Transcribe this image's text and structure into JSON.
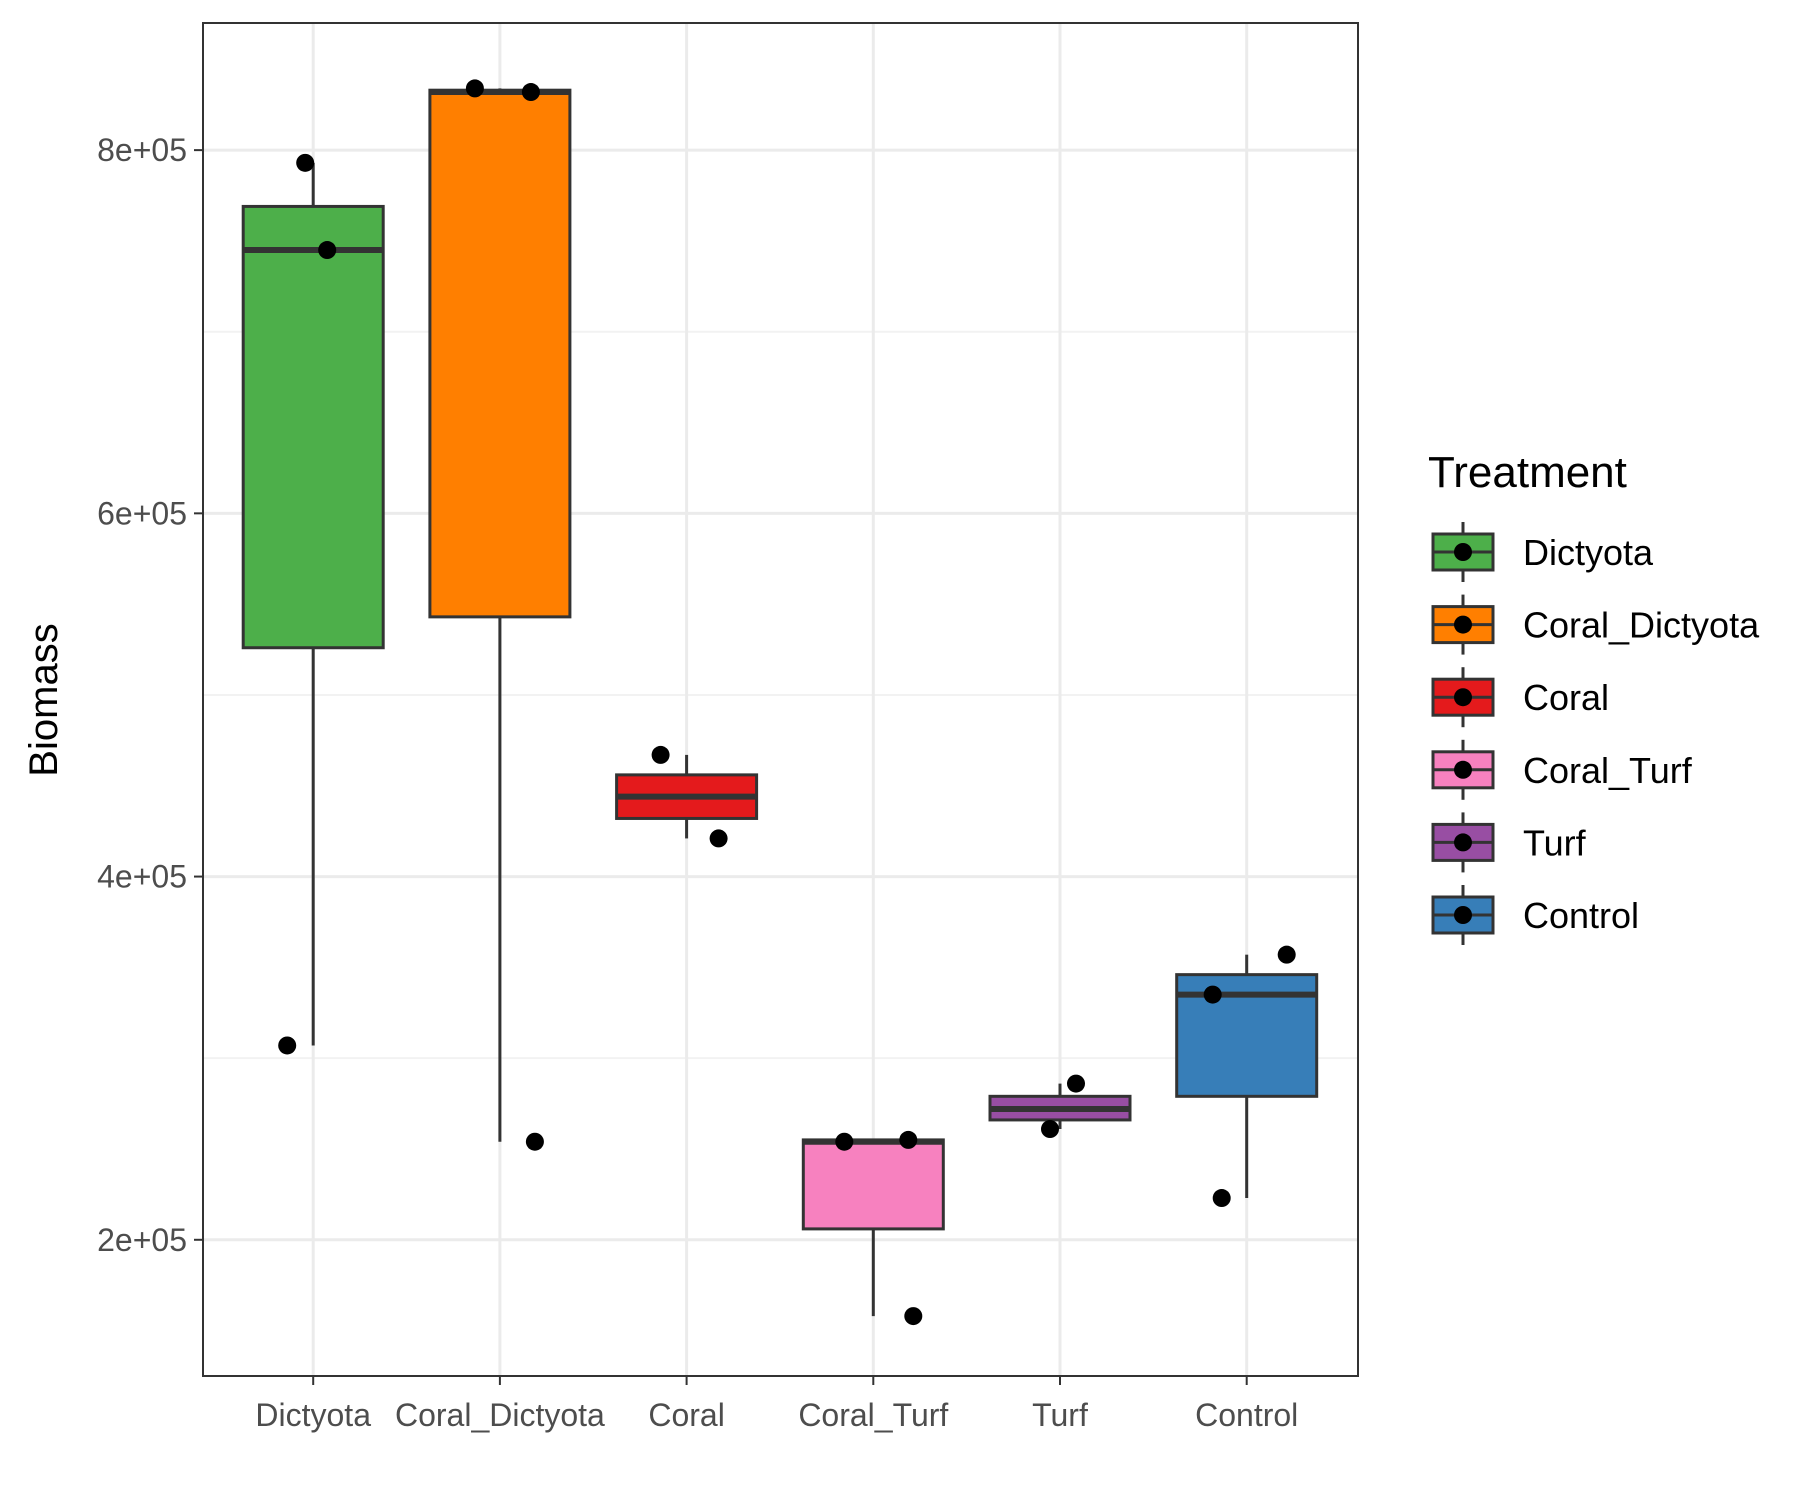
{
  "chart_data": {
    "type": "box",
    "title": "",
    "xlabel": "",
    "ylabel": "Biomass",
    "ylim": [
      125000,
      870000
    ],
    "y_ticks": [
      200000,
      400000,
      600000,
      800000
    ],
    "y_tick_labels": [
      "2e+05",
      "4e+05",
      "6e+05",
      "8e+05"
    ],
    "grid": true,
    "legend": {
      "title": "Treatment",
      "position": "right"
    },
    "categories": [
      "Dictyota",
      "Coral_Dictyota",
      "Coral",
      "Coral_Turf",
      "Turf",
      "Control"
    ],
    "series": [
      {
        "name": "Dictyota",
        "color": "#4DAF4A",
        "min": 307000,
        "q1": 526000,
        "median": 745000,
        "q3": 769000,
        "max": 793000,
        "points": [
          793000,
          745000,
          307000
        ]
      },
      {
        "name": "Coral_Dictyota",
        "color": "#FF7F00",
        "min": 254000,
        "q1": 543000,
        "median": 832000,
        "q3": 833000,
        "max": 834000,
        "points": [
          834000,
          832000,
          254000
        ]
      },
      {
        "name": "Coral",
        "color": "#E41A1C",
        "min": 421000,
        "q1": 432000,
        "median": 444000,
        "q3": 456000,
        "max": 467000,
        "points": [
          467000,
          421000
        ]
      },
      {
        "name": "Coral_Turf",
        "color": "#F781BF",
        "min": 158000,
        "q1": 206000,
        "median": 254000,
        "q3": 255000,
        "max": 255000,
        "points": [
          255000,
          254000,
          158000
        ]
      },
      {
        "name": "Turf",
        "color": "#984EA3",
        "min": 261000,
        "q1": 266000,
        "median": 272000,
        "q3": 279000,
        "max": 286000,
        "points": [
          286000,
          261000
        ]
      },
      {
        "name": "Control",
        "color": "#377EB8",
        "min": 223000,
        "q1": 279000,
        "median": 335000,
        "q3": 346000,
        "max": 357000,
        "points": [
          357000,
          335000,
          223000
        ]
      }
    ]
  }
}
